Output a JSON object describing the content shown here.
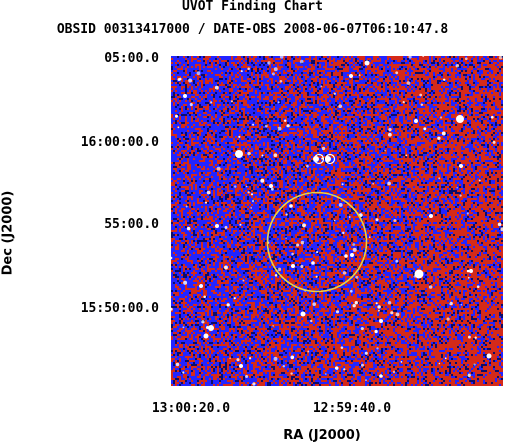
{
  "chart": {
    "title": "UVOT Finding Chart",
    "subtitle": "OBSID 00313417000 / DATE-OBS 2008-06-07T06:10:47.8",
    "xlabel": "RA (J2000)",
    "ylabel": "Dec (J2000)",
    "y_ticks": [
      "05:00.0",
      "16:00:00.0",
      "55:00.0",
      "15:50:00.0"
    ],
    "x_ticks": [
      "13:00:20.0",
      "12:59:40.0"
    ]
  },
  "colors": {
    "background_field": "#1a1a9a",
    "noise_red": "#d42a1a",
    "noise_blue": "#2424ff",
    "noise_dark": "#0c0c6a",
    "star": "#ffffff",
    "target_circle": "#e6d24a"
  }
}
